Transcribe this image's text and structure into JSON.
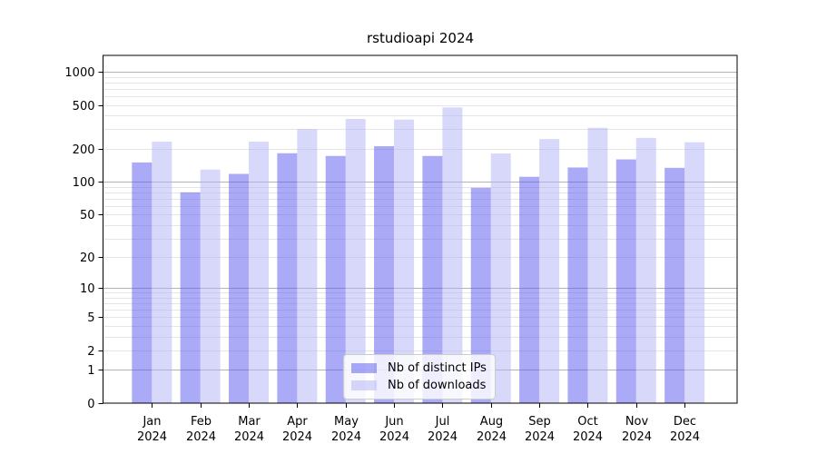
{
  "title": "rstudioapi 2024",
  "chart_data": {
    "type": "bar",
    "title": "rstudioapi 2024",
    "categories": [
      "Jan 2024",
      "Feb 2024",
      "Mar 2024",
      "Apr 2024",
      "May 2024",
      "Jun 2024",
      "Jul 2024",
      "Aug 2024",
      "Sep 2024",
      "Oct 2024",
      "Nov 2024",
      "Dec 2024"
    ],
    "series": [
      {
        "name": "Nb of distinct IPs",
        "color": "#5555f0",
        "values": [
          150,
          80,
          118,
          182,
          172,
          211,
          172,
          88,
          111,
          135,
          160,
          134
        ]
      },
      {
        "name": "Nb of downloads",
        "color": "#b1b1f5",
        "values": [
          232,
          129,
          232,
          301,
          373,
          368,
          475,
          181,
          245,
          310,
          251,
          229
        ]
      }
    ],
    "y_axis": {
      "scale": "log10(value+1)",
      "tick_labels": [
        "0",
        "1",
        "2",
        "5",
        "10",
        "20",
        "50",
        "100",
        "200",
        "500",
        "1000"
      ],
      "tick_values": [
        0,
        1,
        2,
        5,
        10,
        20,
        50,
        100,
        200,
        500,
        1000
      ],
      "ylim": [
        0,
        1400
      ]
    },
    "x_axis": {
      "tick_line2": "2024"
    },
    "legend": {
      "position": "lower center inside",
      "entries": [
        "Nb of distinct IPs",
        "Nb of downloads"
      ]
    },
    "grid": true,
    "grid_colors": {
      "major": "#b3b3b3",
      "minor": "#e5e5e5"
    }
  }
}
